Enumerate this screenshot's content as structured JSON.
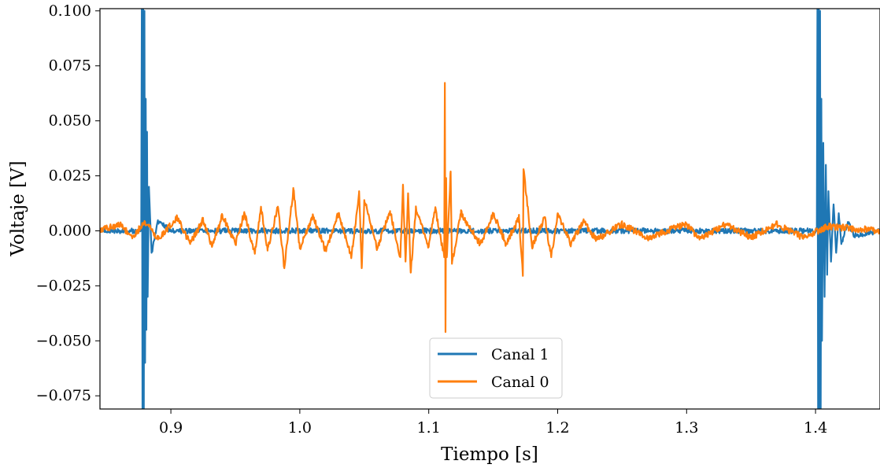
{
  "chart_data": {
    "type": "line",
    "title": "",
    "xlabel": "Tiempo [s]",
    "ylabel": "Voltaje [V]",
    "xlim": [
      0.845,
      1.45
    ],
    "ylim": [
      -0.081,
      0.101
    ],
    "x_ticks": [
      0.9,
      1.0,
      1.1,
      1.2,
      1.3,
      1.4
    ],
    "x_tick_labels": [
      "0.9",
      "1.0",
      "1.1",
      "1.2",
      "1.3",
      "1.4"
    ],
    "y_ticks": [
      -0.075,
      -0.05,
      -0.025,
      0.0,
      0.025,
      0.05,
      0.075,
      0.1
    ],
    "y_tick_labels": [
      "−0.075",
      "−0.050",
      "−0.025",
      "0.000",
      "0.025",
      "0.050",
      "0.075",
      "0.100"
    ],
    "grid": false,
    "legend_position": "lower-center",
    "series": [
      {
        "name": "Canal 1",
        "color": "#1f77b4",
        "noise_amplitude": 0.0012,
        "x": [
          0.845,
          0.877,
          0.8775,
          0.878,
          0.8785,
          0.879,
          0.8795,
          0.88,
          0.8805,
          0.881,
          0.8815,
          0.882,
          0.883,
          0.885,
          0.89,
          0.9,
          1.0,
          1.1,
          1.2,
          1.3,
          1.401,
          1.4015,
          1.402,
          1.4025,
          1.403,
          1.4035,
          1.404,
          1.4045,
          1.405,
          1.406,
          1.407,
          1.408,
          1.409,
          1.41,
          1.412,
          1.414,
          1.416,
          1.418,
          1.42,
          1.425,
          1.43,
          1.45
        ],
        "y": [
          0.0,
          0.0,
          0.11,
          -0.09,
          0.11,
          -0.085,
          0.1,
          -0.06,
          0.06,
          -0.045,
          0.045,
          -0.03,
          0.02,
          -0.01,
          0.004,
          0.0,
          0.0,
          0.0,
          0.0,
          0.0,
          0.0,
          0.11,
          -0.09,
          0.11,
          -0.09,
          0.1,
          -0.085,
          0.06,
          -0.05,
          0.04,
          -0.03,
          0.03,
          -0.02,
          0.018,
          -0.014,
          0.012,
          -0.01,
          0.008,
          -0.006,
          0.004,
          -0.002,
          0.0
        ]
      },
      {
        "name": "Canal 0",
        "color": "#ff7f0e",
        "noise_amplitude": 0.0015,
        "x": [
          0.845,
          0.86,
          0.87,
          0.88,
          0.89,
          0.905,
          0.915,
          0.925,
          0.932,
          0.94,
          0.95,
          0.957,
          0.965,
          0.97,
          0.975,
          0.983,
          0.988,
          0.995,
          1.0,
          1.01,
          1.02,
          1.03,
          1.04,
          1.046,
          1.048,
          1.05,
          1.06,
          1.07,
          1.078,
          1.08,
          1.082,
          1.084,
          1.086,
          1.09,
          1.1,
          1.105,
          1.112,
          1.1125,
          1.113,
          1.1135,
          1.114,
          1.117,
          1.118,
          1.125,
          1.14,
          1.15,
          1.16,
          1.17,
          1.173,
          1.1735,
          1.18,
          1.19,
          1.195,
          1.2,
          1.21,
          1.22,
          1.23,
          1.25,
          1.27,
          1.3,
          1.31,
          1.33,
          1.35,
          1.37,
          1.39,
          1.41,
          1.45
        ],
        "y": [
          0.0,
          0.003,
          -0.003,
          0.004,
          -0.004,
          0.006,
          -0.006,
          0.005,
          -0.007,
          0.007,
          -0.006,
          0.008,
          -0.01,
          0.01,
          -0.009,
          0.011,
          -0.017,
          0.019,
          -0.008,
          0.007,
          -0.009,
          0.008,
          -0.012,
          0.018,
          -0.017,
          0.014,
          -0.008,
          0.009,
          -0.012,
          0.021,
          -0.014,
          0.017,
          -0.019,
          0.01,
          -0.007,
          0.01,
          -0.012,
          0.067,
          -0.046,
          0.024,
          -0.012,
          0.027,
          -0.015,
          0.008,
          -0.006,
          0.008,
          -0.006,
          0.006,
          -0.02,
          0.028,
          -0.007,
          0.006,
          -0.012,
          0.008,
          -0.006,
          0.004,
          -0.004,
          0.003,
          -0.003,
          0.003,
          -0.004,
          0.003,
          -0.003,
          0.003,
          -0.003,
          0.002,
          0.0
        ]
      }
    ]
  }
}
